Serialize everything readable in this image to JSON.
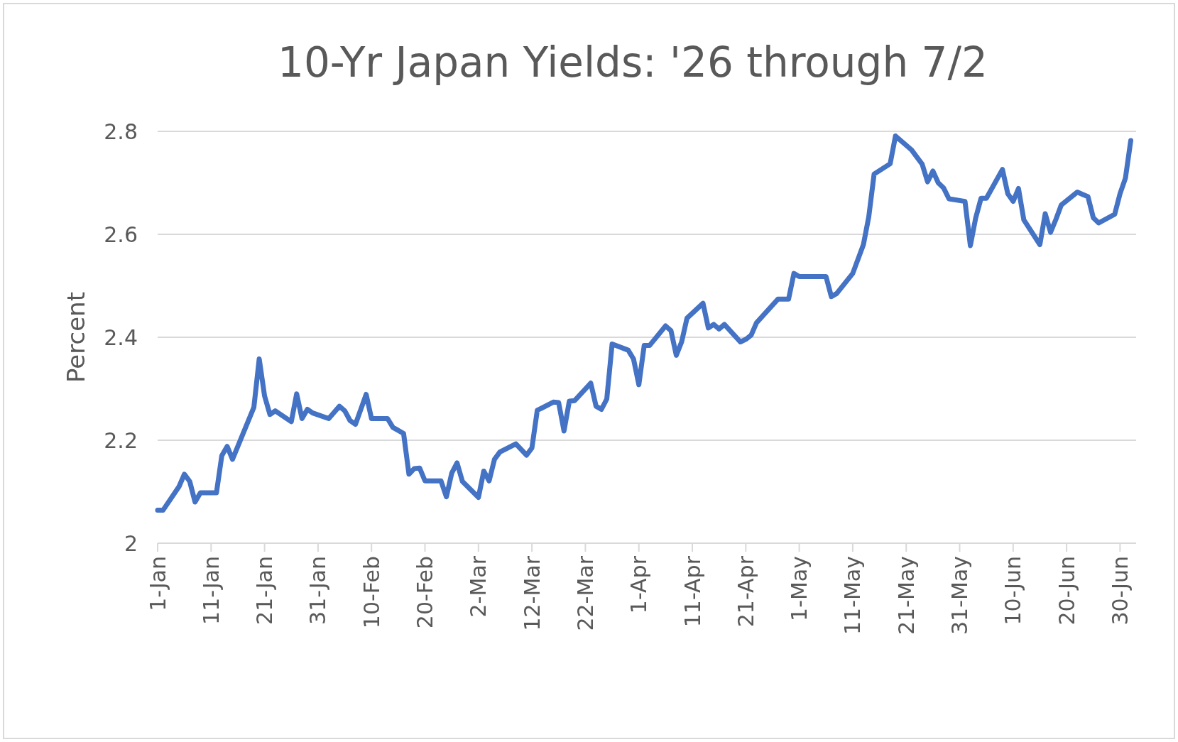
{
  "chart_data": {
    "type": "line",
    "title": "10-Yr Japan Yields: '26 through 7/2",
    "ylabel": "Percent",
    "x": [
      "2026-01-01",
      "2026-01-02",
      "2026-01-05",
      "2026-01-06",
      "2026-01-07",
      "2026-01-08",
      "2026-01-09",
      "2026-01-12",
      "2026-01-13",
      "2026-01-14",
      "2026-01-15",
      "2026-01-19",
      "2026-01-20",
      "2026-01-21",
      "2026-01-22",
      "2026-01-23",
      "2026-01-26",
      "2026-01-27",
      "2026-01-28",
      "2026-01-29",
      "2026-01-30",
      "2026-02-02",
      "2026-02-04",
      "2026-02-05",
      "2026-02-06",
      "2026-02-07",
      "2026-02-09",
      "2026-02-10",
      "2026-02-13",
      "2026-02-14",
      "2026-02-16",
      "2026-02-17",
      "2026-02-18",
      "2026-02-19",
      "2026-02-20",
      "2026-02-23",
      "2026-02-24",
      "2026-02-25",
      "2026-02-26",
      "2026-02-27",
      "2026-03-02",
      "2026-03-03",
      "2026-03-04",
      "2026-03-05",
      "2026-03-06",
      "2026-03-09",
      "2026-03-11",
      "2026-03-12",
      "2026-03-13",
      "2026-03-16",
      "2026-03-17",
      "2026-03-18",
      "2026-03-19",
      "2026-03-20",
      "2026-03-23",
      "2026-03-24",
      "2026-03-25",
      "2026-03-26",
      "2026-03-27",
      "2026-03-30",
      "2026-03-31",
      "2026-04-01",
      "2026-04-02",
      "2026-04-03",
      "2026-04-06",
      "2026-04-07",
      "2026-04-08",
      "2026-04-09",
      "2026-04-10",
      "2026-04-13",
      "2026-04-14",
      "2026-04-15",
      "2026-04-16",
      "2026-04-17",
      "2026-04-20",
      "2026-04-21",
      "2026-04-22",
      "2026-04-23",
      "2026-04-27",
      "2026-04-29",
      "2026-04-30",
      "2026-05-01",
      "2026-05-06",
      "2026-05-07",
      "2026-05-08",
      "2026-05-11",
      "2026-05-13",
      "2026-05-14",
      "2026-05-15",
      "2026-05-18",
      "2026-05-19",
      "2026-05-20",
      "2026-05-22",
      "2026-05-24",
      "2026-05-25",
      "2026-05-26",
      "2026-05-27",
      "2026-05-28",
      "2026-05-29",
      "2026-06-01",
      "2026-06-02",
      "2026-06-03",
      "2026-06-04",
      "2026-06-05",
      "2026-06-08",
      "2026-06-09",
      "2026-06-10",
      "2026-06-11",
      "2026-06-12",
      "2026-06-15",
      "2026-06-16",
      "2026-06-17",
      "2026-06-18",
      "2026-06-19",
      "2026-06-22",
      "2026-06-24",
      "2026-06-25",
      "2026-06-26",
      "2026-06-29",
      "2026-06-30",
      "2026-07-01",
      "2026-07-02"
    ],
    "series": [
      {
        "color": "#4472c4",
        "values": [
          2.064,
          2.064,
          2.11,
          2.134,
          2.12,
          2.08,
          2.098,
          2.098,
          2.17,
          2.188,
          2.163,
          2.264,
          2.358,
          2.286,
          2.25,
          2.257,
          2.236,
          2.29,
          2.242,
          2.26,
          2.253,
          2.242,
          2.266,
          2.257,
          2.238,
          2.231,
          2.289,
          2.242,
          2.242,
          2.225,
          2.213,
          2.134,
          2.145,
          2.146,
          2.121,
          2.121,
          2.09,
          2.136,
          2.156,
          2.12,
          2.089,
          2.14,
          2.121,
          2.163,
          2.177,
          2.193,
          2.171,
          2.185,
          2.258,
          2.274,
          2.273,
          2.218,
          2.276,
          2.277,
          2.311,
          2.266,
          2.26,
          2.28,
          2.387,
          2.375,
          2.358,
          2.308,
          2.384,
          2.384,
          2.422,
          2.413,
          2.365,
          2.391,
          2.437,
          2.466,
          2.418,
          2.425,
          2.416,
          2.425,
          2.391,
          2.396,
          2.404,
          2.428,
          2.474,
          2.474,
          2.524,
          2.518,
          2.518,
          2.479,
          2.485,
          2.524,
          2.58,
          2.634,
          2.717,
          2.737,
          2.791,
          2.782,
          2.764,
          2.736,
          2.702,
          2.723,
          2.7,
          2.69,
          2.669,
          2.664,
          2.578,
          2.632,
          2.67,
          2.67,
          2.726,
          2.679,
          2.664,
          2.689,
          2.628,
          2.58,
          2.64,
          2.604,
          2.629,
          2.657,
          2.682,
          2.673,
          2.632,
          2.622,
          2.639,
          2.679,
          2.709,
          2.782
        ]
      }
    ],
    "xlim": [
      "2026-01-01",
      "2026-07-03"
    ],
    "xticks": [
      {
        "value": "2026-01-01",
        "label": "1-Jan"
      },
      {
        "value": "2026-01-11",
        "label": "11-Jan"
      },
      {
        "value": "2026-01-21",
        "label": "21-Jan"
      },
      {
        "value": "2026-01-31",
        "label": "31-Jan"
      },
      {
        "value": "2026-02-10",
        "label": "10-Feb"
      },
      {
        "value": "2026-02-20",
        "label": "20-Feb"
      },
      {
        "value": "2026-03-02",
        "label": "2-Mar"
      },
      {
        "value": "2026-03-12",
        "label": "12-Mar"
      },
      {
        "value": "2026-03-22",
        "label": "22-Mar"
      },
      {
        "value": "2026-04-01",
        "label": "1-Apr"
      },
      {
        "value": "2026-04-11",
        "label": "11-Apr"
      },
      {
        "value": "2026-04-21",
        "label": "21-Apr"
      },
      {
        "value": "2026-05-01",
        "label": "1-May"
      },
      {
        "value": "2026-05-11",
        "label": "11-May"
      },
      {
        "value": "2026-05-21",
        "label": "21-May"
      },
      {
        "value": "2026-05-31",
        "label": "31-May"
      },
      {
        "value": "2026-06-10",
        "label": "10-Jun"
      },
      {
        "value": "2026-06-20",
        "label": "20-Jun"
      },
      {
        "value": "2026-06-30",
        "label": "30-Jun"
      }
    ],
    "ylim": [
      2,
      2.8
    ],
    "yticks": [
      2,
      2.2,
      2.4,
      2.6,
      2.8
    ],
    "grid": "y",
    "marker": "none",
    "line_style": "solid"
  }
}
